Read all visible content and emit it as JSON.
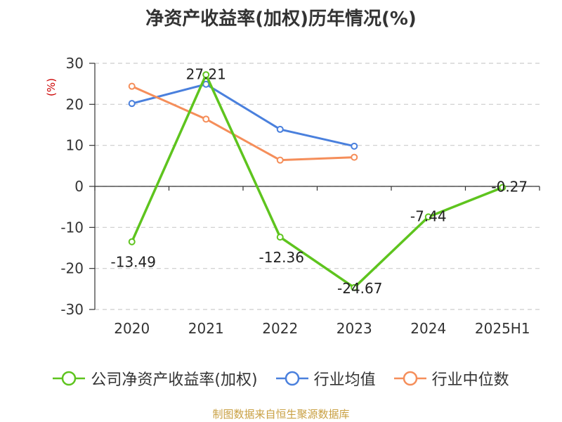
{
  "chart_data": {
    "type": "line",
    "title": "净资产收益率(加权)历年情况(%)",
    "ylabel": "(%)",
    "xlabel": "",
    "categories": [
      "2020",
      "2021",
      "2022",
      "2023",
      "2024",
      "2025H1"
    ],
    "ylim": [
      -30,
      30
    ],
    "yticks": [
      30,
      20,
      10,
      0,
      -10,
      -20,
      -30
    ],
    "grid": "horizontal-dashed",
    "legend_position": "bottom",
    "series": [
      {
        "name": "公司净资产收益率(加权)",
        "color": "#5ec41e",
        "values": [
          -13.49,
          27.21,
          -12.36,
          -24.67,
          -7.44,
          -0.27
        ],
        "data_labels": [
          "-13.49",
          "27.21",
          "-12.36",
          "-24.67",
          "-7.44",
          "-0.27"
        ]
      },
      {
        "name": "行业均值",
        "color": "#4a80dd",
        "values": [
          20.2,
          24.9,
          13.9,
          9.8,
          null,
          null
        ]
      },
      {
        "name": "行业中位数",
        "color": "#f58e5a",
        "values": [
          24.4,
          16.4,
          6.4,
          7.1,
          null,
          null
        ]
      }
    ]
  },
  "source_note": "制图数据来自恒生聚源数据库"
}
